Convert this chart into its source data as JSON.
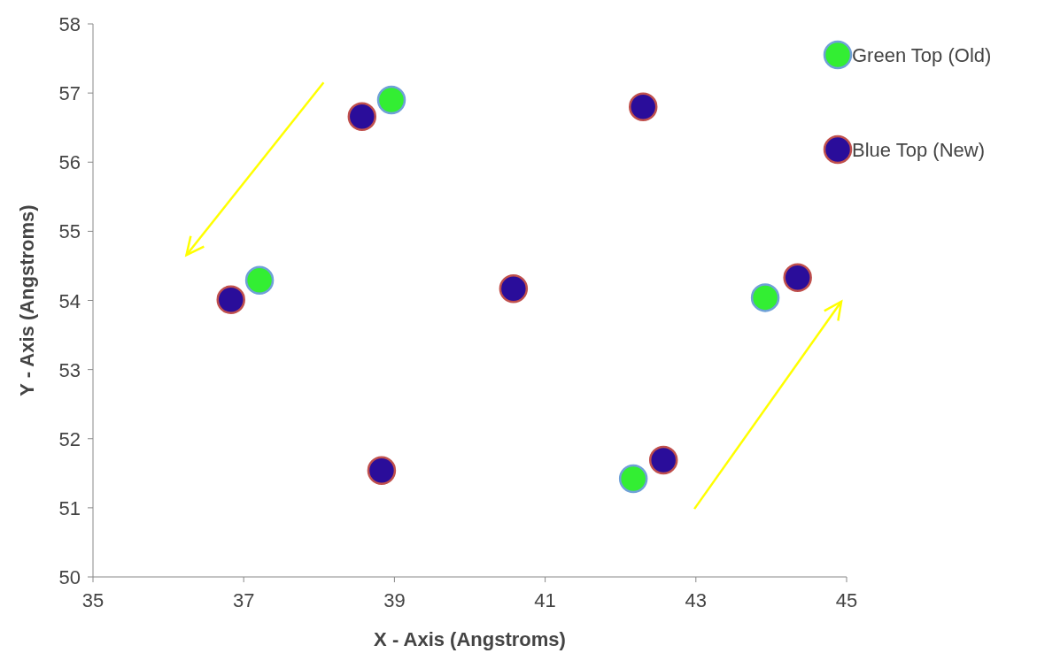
{
  "chart_data": {
    "type": "scatter",
    "xlabel": "X - Axis (Angstroms)",
    "ylabel": "Y - Axis (Angstroms)",
    "xlim": [
      35,
      45
    ],
    "xticks": [
      35,
      37,
      39,
      41,
      43,
      45
    ],
    "ylim": [
      50,
      58
    ],
    "yticks": [
      50,
      51,
      52,
      53,
      54,
      55,
      56,
      57,
      58
    ],
    "grid": false,
    "legend": "top right",
    "marker": "circle",
    "series": [
      {
        "name": "Green Top (Old)",
        "color": "#33ee33",
        "x": [
          38.96,
          37.21,
          43.92,
          42.17
        ],
        "values": [
          56.9,
          54.29,
          54.04,
          51.42
        ]
      },
      {
        "name": "Blue Top (New)",
        "color": "#2a0d9a",
        "x": [
          38.57,
          42.3,
          36.83,
          40.58,
          44.35,
          38.83,
          42.57
        ],
        "values": [
          56.66,
          56.8,
          54.01,
          54.17,
          54.33,
          51.54,
          51.69
        ]
      }
    ]
  }
}
